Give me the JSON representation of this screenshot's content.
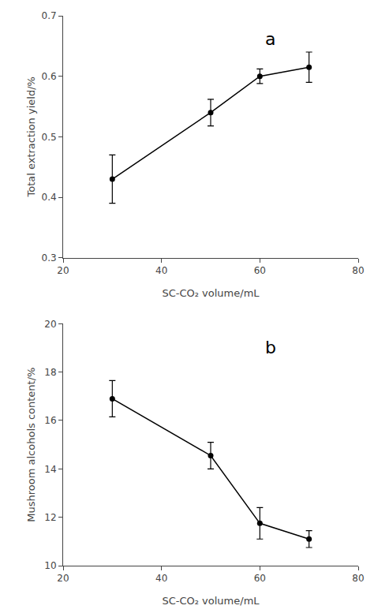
{
  "chart_data": [
    {
      "type": "line",
      "x": [
        30,
        50,
        60,
        70
      ],
      "values": [
        0.43,
        0.54,
        0.6,
        0.615
      ],
      "yerr": [
        0.04,
        0.022,
        0.012,
        0.025
      ],
      "xlim": [
        20,
        80
      ],
      "ylim": [
        0.3,
        0.7
      ],
      "xticks": [
        20,
        40,
        60,
        80
      ],
      "yticks": [
        0.3,
        0.4,
        0.5,
        0.6,
        0.7
      ],
      "xlabel": "SC-CO₂ volume/mL",
      "ylabel": "Total extraction yield/%",
      "annotation": "a",
      "color": "#000000",
      "marker": "circle",
      "grid": false
    },
    {
      "type": "line",
      "x": [
        30,
        50,
        60,
        70
      ],
      "values": [
        16.9,
        14.55,
        11.75,
        11.1
      ],
      "yerr": [
        0.75,
        0.55,
        0.65,
        0.35
      ],
      "xlim": [
        20,
        80
      ],
      "ylim": [
        10,
        20
      ],
      "xticks": [
        20,
        40,
        60,
        80
      ],
      "yticks": [
        10,
        12,
        14,
        16,
        18,
        20
      ],
      "xlabel": "SC-CO₂ volume/mL",
      "ylabel": "Mushroom alcohols content/%",
      "annotation": "b",
      "color": "#000000",
      "marker": "circle",
      "grid": false
    }
  ]
}
